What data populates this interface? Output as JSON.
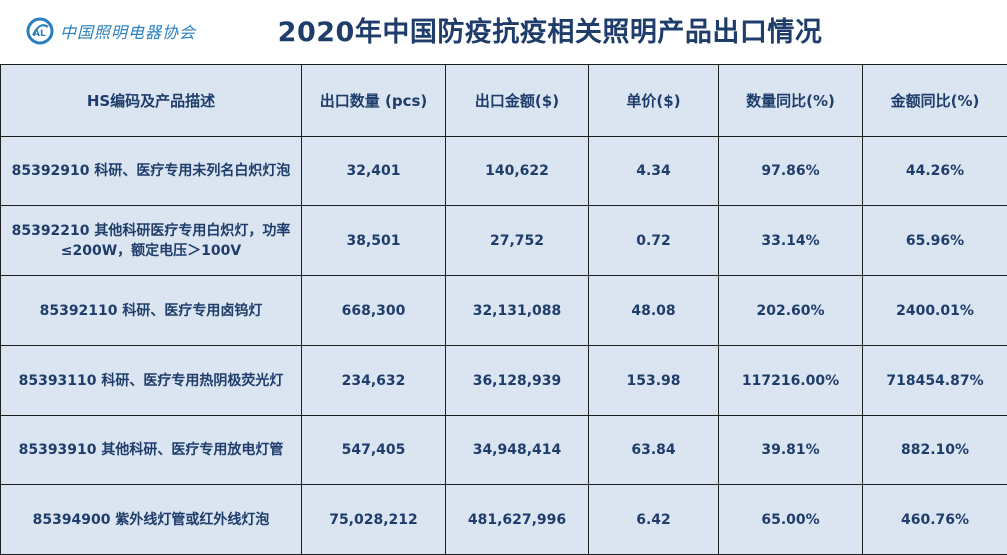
{
  "logo": {
    "icon": "cali-logo-icon",
    "text": "中国照明电器协会"
  },
  "title": "2020年中国防疫抗疫相关照明产品出口情况",
  "table": {
    "headers": [
      "HS编码及产品描述",
      "出口数量 (pcs)",
      "出口金额($)",
      "单价($)",
      "数量同比(%)",
      "金额同比(%)"
    ],
    "rows": [
      {
        "desc_line1": "85392910 科研、医疗专用未列名白炽灯泡",
        "desc_line2": "",
        "qty": "32,401",
        "amount": "140,622",
        "price": "4.34",
        "qty_yoy": "97.86%",
        "amount_yoy": "44.26%"
      },
      {
        "desc_line1": "85392210 其他科研医疗专用白炽灯，功率",
        "desc_line2": "≤200W，额定电压＞100V",
        "qty": "38,501",
        "amount": "27,752",
        "price": "0.72",
        "qty_yoy": "33.14%",
        "amount_yoy": "65.96%"
      },
      {
        "desc_line1": "85392110 科研、医疗专用卤钨灯",
        "desc_line2": "",
        "qty": "668,300",
        "amount": "32,131,088",
        "price": "48.08",
        "qty_yoy": "202.60%",
        "amount_yoy": "2400.01%"
      },
      {
        "desc_line1": "85393110 科研、医疗专用热阴极荧光灯",
        "desc_line2": "",
        "qty": "234,632",
        "amount": "36,128,939",
        "price": "153.98",
        "qty_yoy": "117216.00%",
        "amount_yoy": "718454.87%"
      },
      {
        "desc_line1": "85393910 其他科研、医疗专用放电灯管",
        "desc_line2": "",
        "qty": "547,405",
        "amount": "34,948,414",
        "price": "63.84",
        "qty_yoy": "39.81%",
        "amount_yoy": "882.10%"
      },
      {
        "desc_line1": "85394900 紫外线灯管或红外线灯泡",
        "desc_line2": "",
        "qty": "75,028,212",
        "amount": "481,627,996",
        "price": "6.42",
        "qty_yoy": "65.00%",
        "amount_yoy": "460.76%"
      }
    ]
  },
  "colors": {
    "cell_bg": "#dbe5f1",
    "text": "#1f3d6b",
    "highlight": "#ff0000",
    "logo": "#2a7fbf"
  }
}
